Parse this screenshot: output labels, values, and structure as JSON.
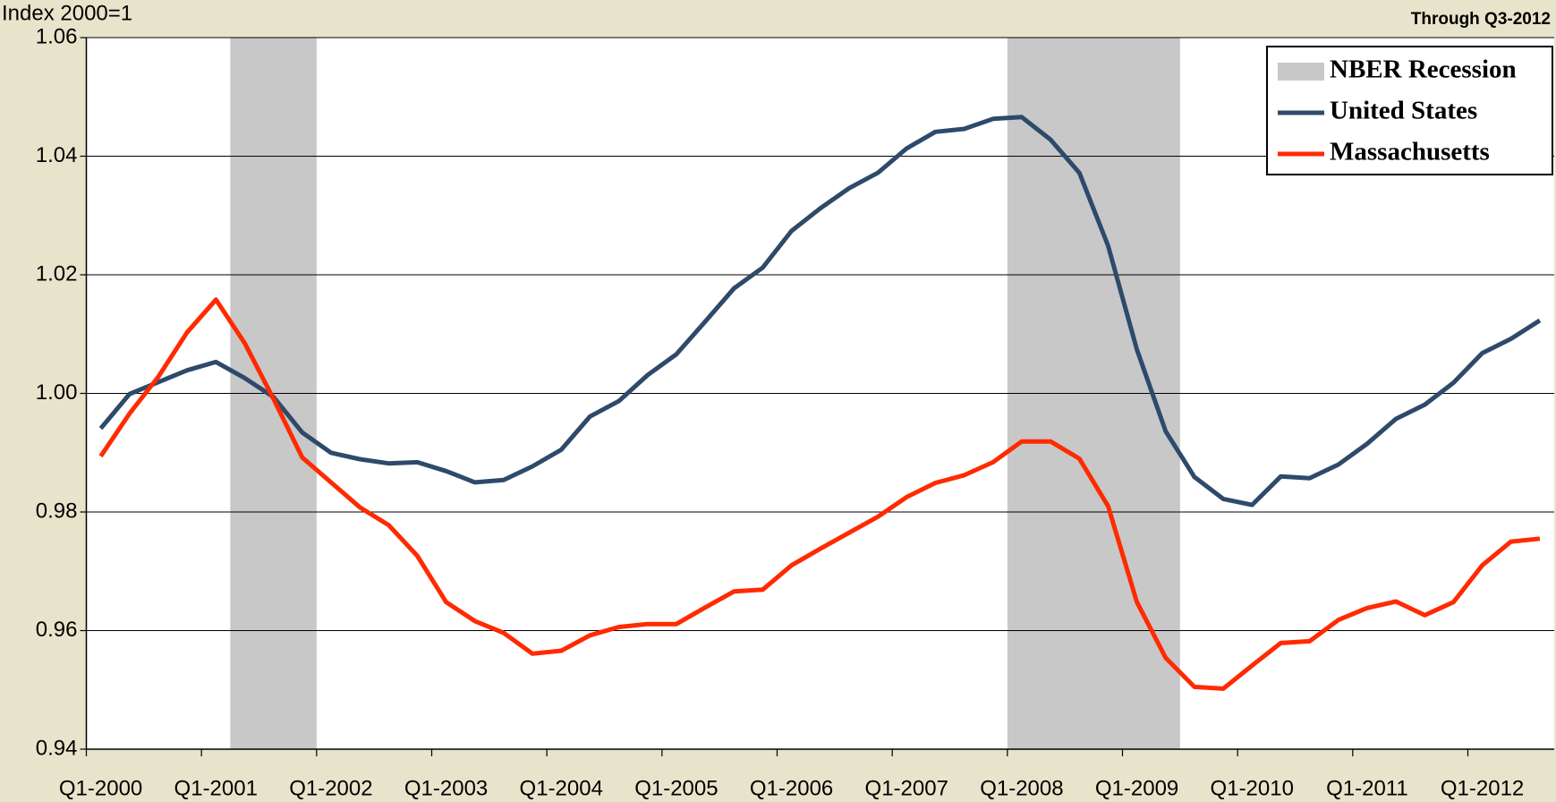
{
  "chart_data": {
    "type": "line",
    "y_label": "Index 2000=1",
    "subtitle": "Through Q3-2012",
    "categories": [
      "Q1-2000",
      null,
      null,
      null,
      "Q1-2001",
      null,
      null,
      null,
      "Q1-2002",
      null,
      null,
      null,
      "Q1-2003",
      null,
      null,
      null,
      "Q1-2004",
      null,
      null,
      null,
      "Q1-2005",
      null,
      null,
      null,
      "Q1-2006",
      null,
      null,
      null,
      "Q1-2007",
      null,
      null,
      null,
      "Q1-2008",
      null,
      null,
      null,
      "Q1-2009",
      null,
      null,
      null,
      "Q1-2010",
      null,
      null,
      null,
      "Q1-2011",
      null,
      null,
      null,
      "Q1-2012",
      null,
      null
    ],
    "shading": {
      "name": "NBER Recession",
      "color": "#c8c8c8",
      "spans": [
        [
          5,
          7
        ],
        [
          32,
          37
        ]
      ]
    },
    "series": [
      {
        "name": "United States",
        "color": "#2e4a6b",
        "values": [
          0.9941,
          0.9999,
          1.0019,
          1.0039,
          1.0053,
          1.0026,
          0.9994,
          0.9934,
          0.99,
          0.9889,
          0.9882,
          0.9884,
          0.9869,
          0.985,
          0.9854,
          0.9877,
          0.9905,
          0.9961,
          0.9987,
          1.0031,
          1.0066,
          1.0121,
          1.0177,
          1.0212,
          1.0274,
          1.0312,
          1.0346,
          1.0372,
          1.0413,
          1.0441,
          1.0446,
          1.0463,
          1.0466,
          1.0428,
          1.0372,
          1.0249,
          1.0074,
          0.9936,
          0.9859,
          0.9822,
          0.9812,
          0.986,
          0.9857,
          0.988,
          0.9915,
          0.9957,
          0.9981,
          1.0018,
          1.0068,
          1.0092,
          1.0123
        ]
      },
      {
        "name": "Massachusetts",
        "color": "#ff2a00",
        "values": [
          0.9894,
          0.9966,
          1.0028,
          1.0103,
          1.0158,
          1.0085,
          0.9991,
          0.9892,
          0.985,
          0.9808,
          0.9778,
          0.9726,
          0.9648,
          0.9616,
          0.9596,
          0.9561,
          0.9566,
          0.9592,
          0.9606,
          0.9611,
          0.9611,
          0.9639,
          0.9666,
          0.9669,
          0.971,
          0.9738,
          0.9765,
          0.9792,
          0.9825,
          0.9849,
          0.9862,
          0.9884,
          0.9919,
          0.9919,
          0.989,
          0.981,
          0.9648,
          0.9554,
          0.9505,
          0.9502,
          0.9541,
          0.9579,
          0.9582,
          0.9618,
          0.9638,
          0.9649,
          0.9626,
          0.9648,
          0.971,
          0.975,
          0.9755
        ]
      }
    ],
    "ylim": [
      0.94,
      1.06
    ],
    "yticks": [
      0.94,
      0.96,
      0.98,
      {
        "value": 1,
        "label": "1.00"
      },
      1.02,
      1.04,
      1.06
    ],
    "grid": true
  }
}
